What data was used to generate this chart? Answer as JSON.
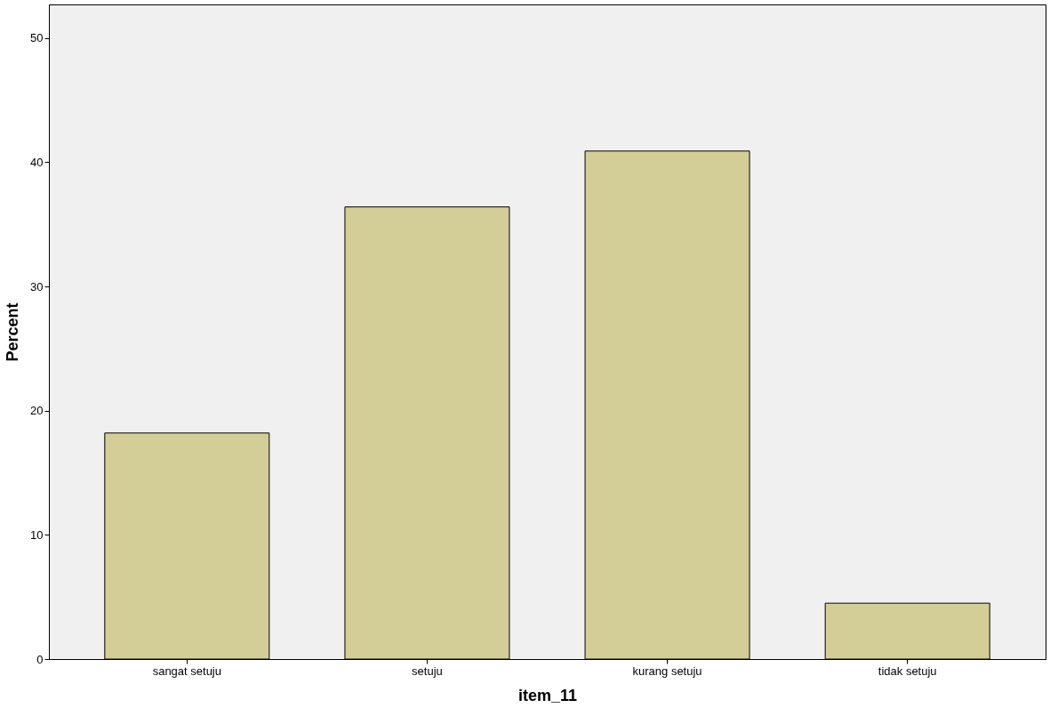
{
  "chart_data": {
    "type": "bar",
    "xlabel": "item_11",
    "ylabel": "Percent",
    "categories": [
      "sangat setuju",
      "setuju",
      "kurang setuju",
      "tidak setuju"
    ],
    "values": [
      18.2,
      36.4,
      40.9,
      4.5
    ],
    "color": "#d3ce97",
    "ylim": [
      0,
      52.7
    ],
    "yticks": [
      0,
      10,
      20,
      30,
      40,
      50
    ],
    "grid": false
  }
}
